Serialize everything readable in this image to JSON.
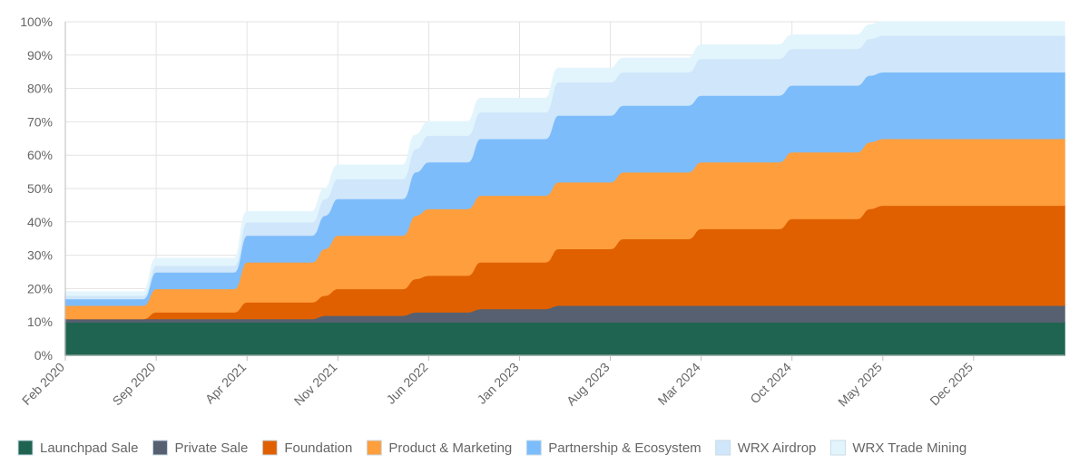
{
  "chart_data": {
    "type": "area",
    "stacked": true,
    "y_ticks": [
      "0%",
      "10%",
      "20%",
      "30%",
      "40%",
      "50%",
      "60%",
      "70%",
      "80%",
      "90%",
      "100%"
    ],
    "x_tick_labels": [
      "Feb 2020",
      "Sep 2020",
      "Apr 2021",
      "Nov 2021",
      "Jun 2022",
      "Jan 2023",
      "Aug 2023",
      "Mar 2024",
      "Oct 2024",
      "May 2025",
      "Dec 2025"
    ],
    "ylim": [
      0,
      100
    ],
    "grid": true,
    "legend_position": "bottom",
    "x": [
      "Feb 2020",
      "Aug 2020",
      "Sep 2020",
      "Jan 2021",
      "Mar 2021",
      "Apr 2021",
      "Sep 2021",
      "Oct 2021",
      "Nov 2021",
      "Apr 2022",
      "May 2022",
      "Jun 2022",
      "Sep 2022",
      "Oct 2022",
      "Jan 2023",
      "Mar 2023",
      "Apr 2023",
      "Aug 2023",
      "Sep 2023",
      "Feb 2024",
      "Mar 2024",
      "Sep 2024",
      "Oct 2024",
      "Mar 2025",
      "Apr 2025",
      "May 2025",
      "Jul 2026"
    ],
    "series": [
      {
        "name": "Launchpad Sale",
        "color": "#1f6450",
        "values": [
          10,
          10,
          10,
          10,
          10,
          10,
          10,
          10,
          10,
          10,
          10,
          10,
          10,
          10,
          10,
          10,
          10,
          10,
          10,
          10,
          10,
          10,
          10,
          10,
          10,
          10,
          10
        ]
      },
      {
        "name": "Private Sale",
        "color": "#566070",
        "values": [
          1,
          1,
          1,
          1,
          1,
          1,
          1,
          2,
          2,
          2,
          3,
          3,
          3,
          4,
          4,
          4,
          5,
          5,
          5,
          5,
          5,
          5,
          5,
          5,
          5,
          5,
          5
        ]
      },
      {
        "name": "Foundation",
        "color": "#e06000",
        "values": [
          0,
          0,
          2,
          2,
          2,
          5,
          5,
          6,
          8,
          8,
          10,
          11,
          11,
          14,
          14,
          14,
          17,
          17,
          20,
          20,
          23,
          23,
          26,
          26,
          29,
          30,
          30
        ]
      },
      {
        "name": "Product & Marketing",
        "color": "#ff9e3d",
        "values": [
          4,
          4,
          7,
          7,
          7,
          12,
          12,
          14,
          16,
          16,
          19,
          20,
          20,
          20,
          20,
          20,
          20,
          20,
          20,
          20,
          20,
          20,
          20,
          20,
          20,
          20,
          20
        ]
      },
      {
        "name": "Partnership & Ecosystem",
        "color": "#7cbcfa",
        "values": [
          2,
          2,
          5,
          5,
          5,
          8,
          8,
          10,
          11,
          11,
          13,
          14,
          14,
          17,
          17,
          17,
          20,
          20,
          20,
          20,
          20,
          20,
          20,
          20,
          20,
          20,
          20
        ]
      },
      {
        "name": "WRX Airdrop",
        "color": "#cfe6fb",
        "values": [
          1,
          1,
          2,
          2,
          2,
          4,
          4,
          5,
          6,
          6,
          7,
          8,
          8,
          8,
          8,
          8,
          10,
          10,
          10,
          10,
          11,
          11,
          11,
          11,
          11,
          11,
          11
        ]
      },
      {
        "name": "WRX Trade Mining",
        "color": "#e3f5fc",
        "values": [
          1,
          1,
          2,
          2,
          2,
          3,
          3,
          3,
          4,
          4,
          4,
          4,
          4,
          4,
          4,
          4,
          4,
          4,
          4,
          4,
          4,
          4,
          4,
          4,
          4,
          4,
          4
        ]
      }
    ]
  }
}
